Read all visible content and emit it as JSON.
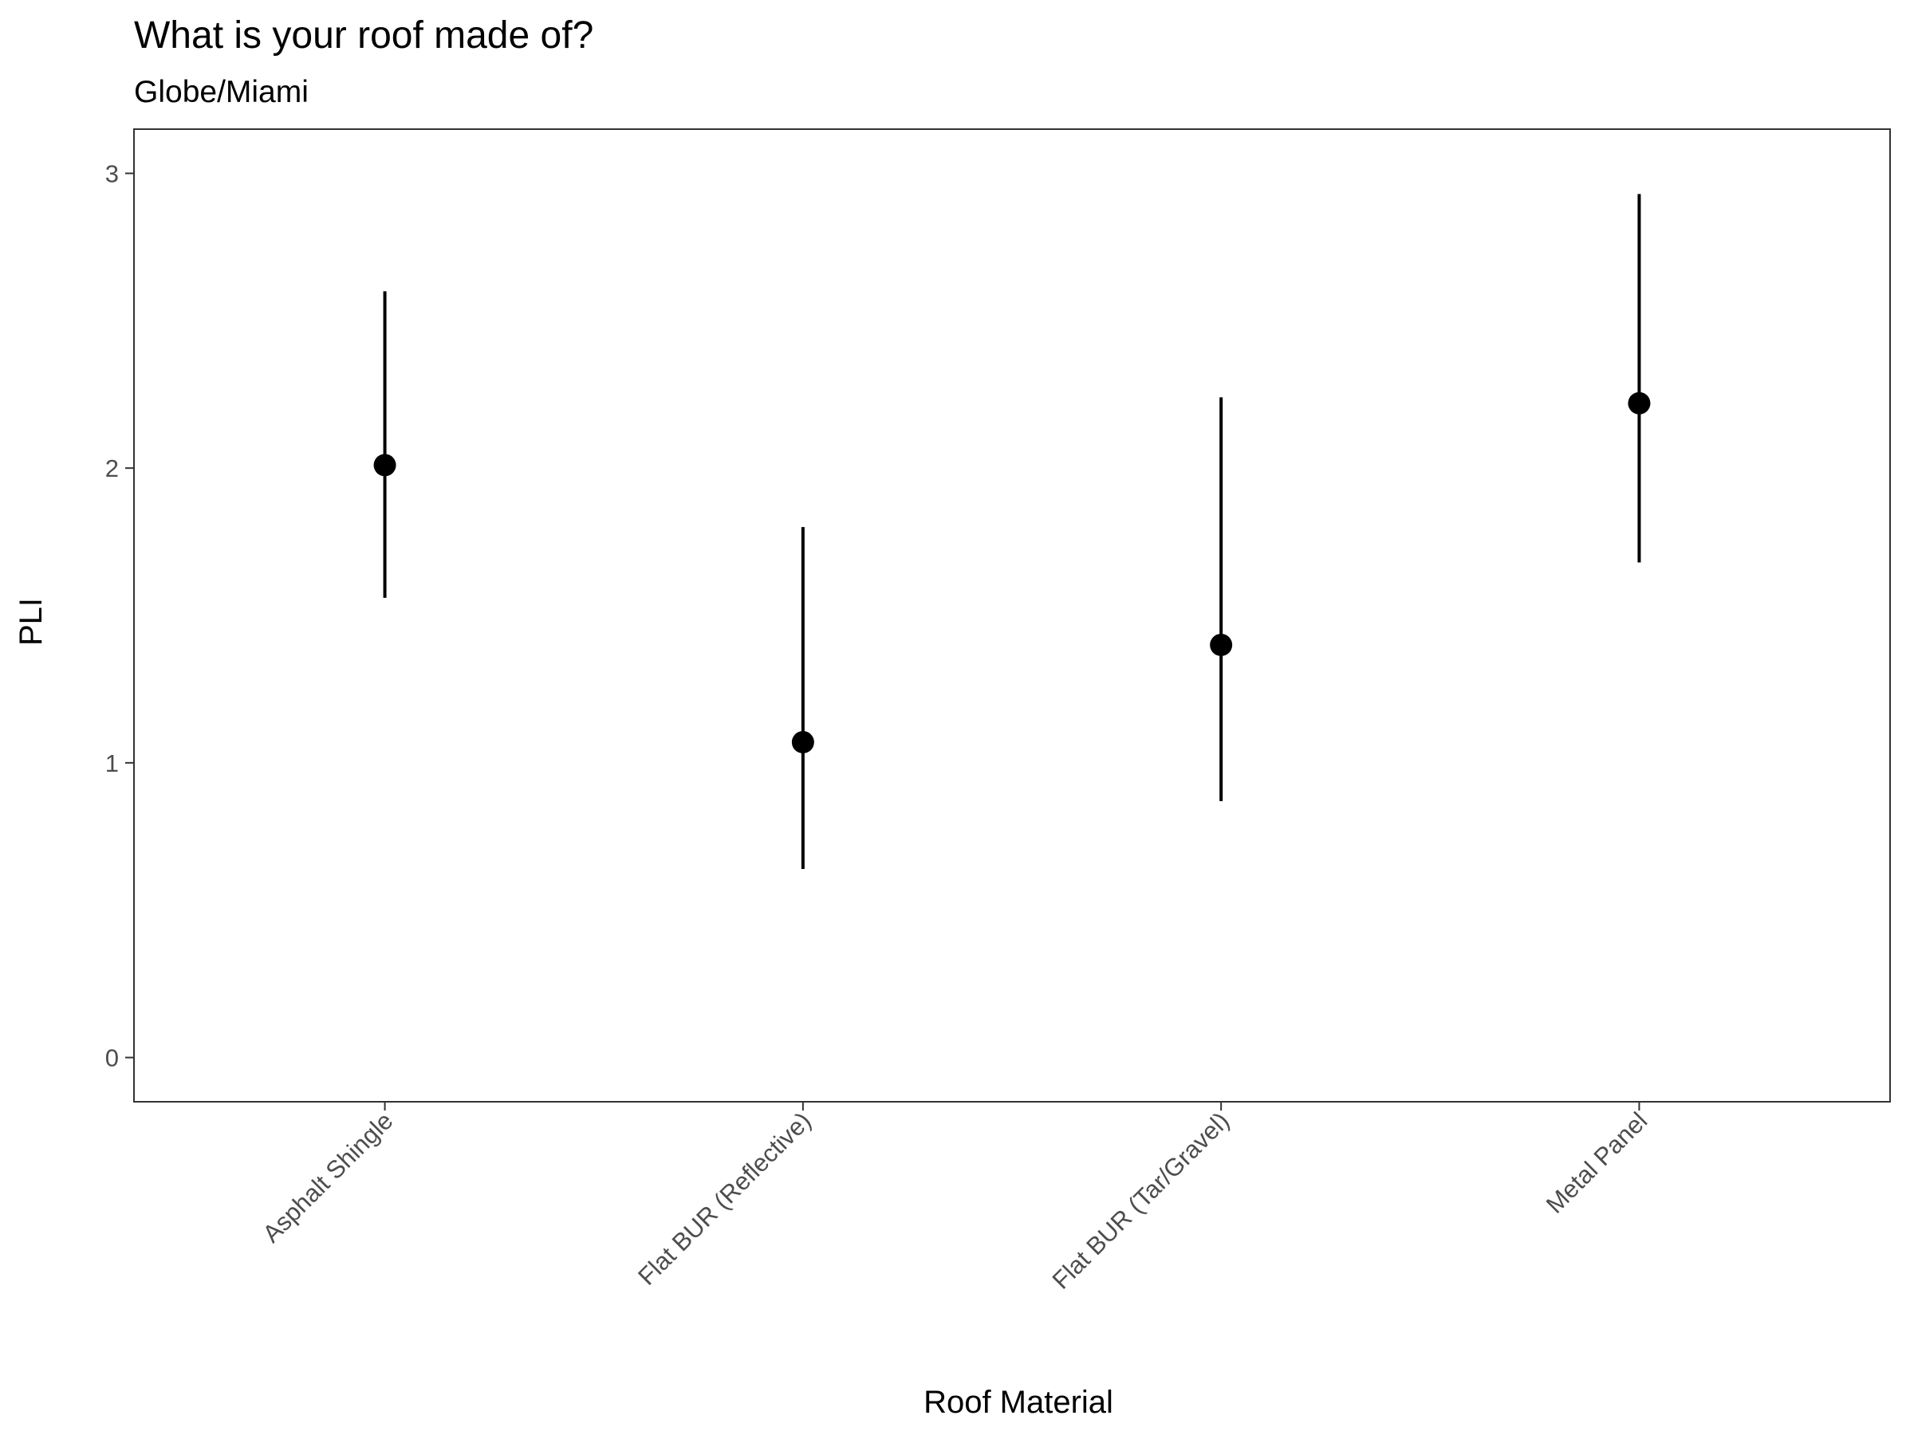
{
  "chart_data": {
    "type": "scatter",
    "title": "What is your roof made of?",
    "subtitle": "Globe/Miami",
    "xlabel": "Roof Material",
    "ylabel": "PLI",
    "categories": [
      "Asphalt Shingle",
      "Flat BUR (Reflective)",
      "Flat BUR (Tar/Gravel)",
      "Metal Panel"
    ],
    "series": [
      {
        "values": [
          2.01,
          1.07,
          1.4,
          2.22
        ],
        "lower": [
          1.56,
          0.64,
          0.87,
          1.68
        ],
        "upper": [
          2.6,
          1.8,
          2.24,
          2.93
        ]
      }
    ],
    "ylim": [
      -0.15,
      3.15
    ],
    "yticks": [
      0,
      1,
      2,
      3
    ],
    "grid": false,
    "legend": "none",
    "colors": {
      "point": "#000000",
      "errorbar": "#000000",
      "panel_border": "#333333",
      "tick_label": "#4d4d4d"
    }
  }
}
